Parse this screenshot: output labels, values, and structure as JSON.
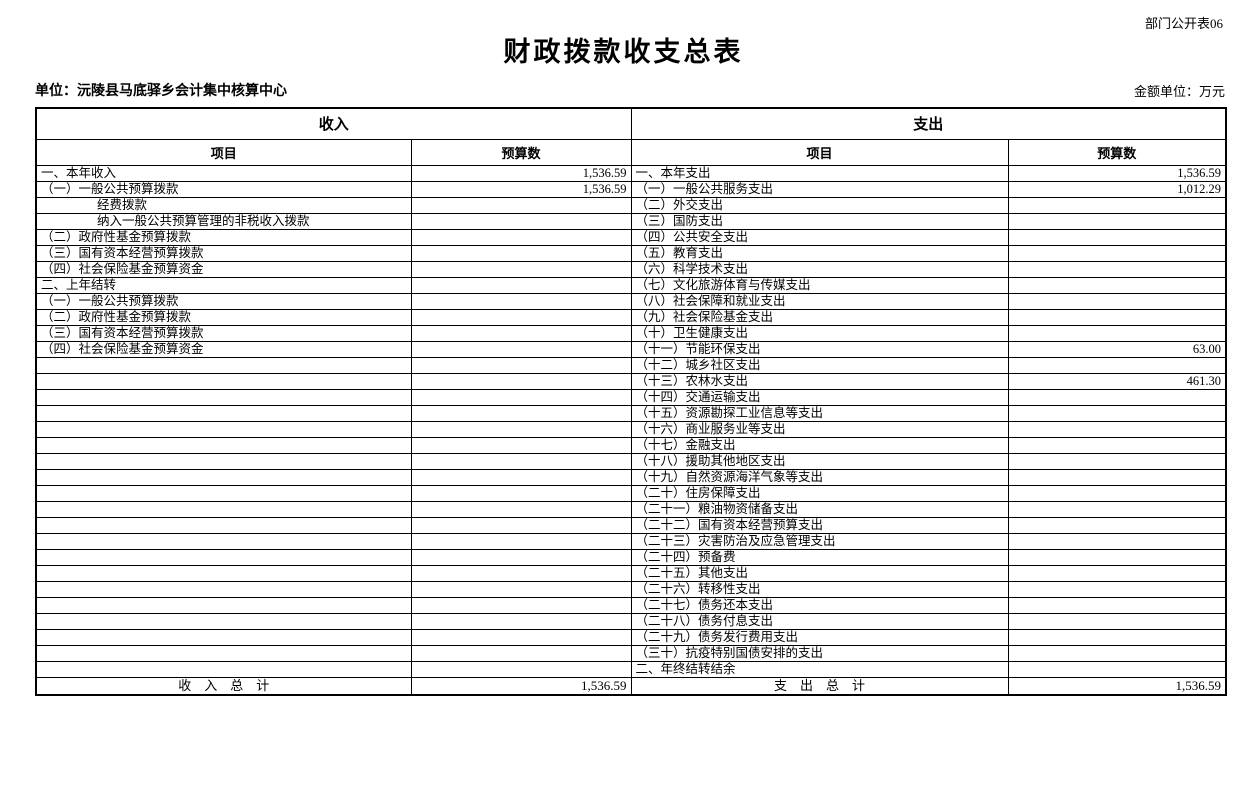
{
  "meta": {
    "doc_code": "部门公开表06",
    "title": "财政拨款收支总表",
    "unit_label": "单位：沅陵县马底驿乡会计集中核算中心",
    "amount_unit_label": "金额单位：万元"
  },
  "table": {
    "income_section_header": "收入",
    "expense_section_header": "支出",
    "item_column_header": "项目",
    "budget_column_header": "预算数",
    "income_rows": [
      {
        "item": "一、本年收入",
        "value": "1,536.59",
        "indent": 0
      },
      {
        "item": "（一）一般公共预算拨款",
        "value": "1,536.59",
        "indent": 0
      },
      {
        "item": "经费拨款",
        "value": "",
        "indent": 1
      },
      {
        "item": "纳入一般公共预算管理的非税收入拨款",
        "value": "",
        "indent": 1
      },
      {
        "item": "（二）政府性基金预算拨款",
        "value": "",
        "indent": 0
      },
      {
        "item": "（三）国有资本经营预算拨款",
        "value": "",
        "indent": 0
      },
      {
        "item": "（四）社会保险基金预算资金",
        "value": "",
        "indent": 0
      },
      {
        "item": "二、上年结转",
        "value": "",
        "indent": 0
      },
      {
        "item": "（一）一般公共预算拨款",
        "value": "",
        "indent": 0
      },
      {
        "item": "（二）政府性基金预算拨款",
        "value": "",
        "indent": 0
      },
      {
        "item": "（三）国有资本经营预算拨款",
        "value": "",
        "indent": 0
      },
      {
        "item": "（四）社会保险基金预算资金",
        "value": "",
        "indent": 0
      },
      {
        "item": "",
        "value": "",
        "indent": 0
      },
      {
        "item": "",
        "value": "",
        "indent": 0
      },
      {
        "item": "",
        "value": "",
        "indent": 0
      },
      {
        "item": "",
        "value": "",
        "indent": 0
      },
      {
        "item": "",
        "value": "",
        "indent": 0
      },
      {
        "item": "",
        "value": "",
        "indent": 0
      },
      {
        "item": "",
        "value": "",
        "indent": 0
      },
      {
        "item": "",
        "value": "",
        "indent": 0
      },
      {
        "item": "",
        "value": "",
        "indent": 0
      },
      {
        "item": "",
        "value": "",
        "indent": 0
      },
      {
        "item": "",
        "value": "",
        "indent": 0
      },
      {
        "item": "",
        "value": "",
        "indent": 0
      },
      {
        "item": "",
        "value": "",
        "indent": 0
      },
      {
        "item": "",
        "value": "",
        "indent": 0
      },
      {
        "item": "",
        "value": "",
        "indent": 0
      },
      {
        "item": "",
        "value": "",
        "indent": 0
      },
      {
        "item": "",
        "value": "",
        "indent": 0
      },
      {
        "item": "",
        "value": "",
        "indent": 0
      },
      {
        "item": "",
        "value": "",
        "indent": 0
      },
      {
        "item": "",
        "value": "",
        "indent": 0
      }
    ],
    "expense_rows": [
      {
        "item": "一、本年支出",
        "value": "1,536.59",
        "indent": 0
      },
      {
        "item": "（一）一般公共服务支出",
        "value": "1,012.29",
        "indent": 0
      },
      {
        "item": "（二）外交支出",
        "value": "",
        "indent": 0
      },
      {
        "item": "（三）国防支出",
        "value": "",
        "indent": 0
      },
      {
        "item": "（四）公共安全支出",
        "value": "",
        "indent": 0
      },
      {
        "item": "（五）教育支出",
        "value": "",
        "indent": 0
      },
      {
        "item": "（六）科学技术支出",
        "value": "",
        "indent": 0
      },
      {
        "item": "（七）文化旅游体育与传媒支出",
        "value": "",
        "indent": 0
      },
      {
        "item": "（八）社会保障和就业支出",
        "value": "",
        "indent": 0
      },
      {
        "item": "（九）社会保险基金支出",
        "value": "",
        "indent": 0
      },
      {
        "item": "（十）卫生健康支出",
        "value": "",
        "indent": 0
      },
      {
        "item": "（十一）节能环保支出",
        "value": "63.00",
        "indent": 0
      },
      {
        "item": "（十二）城乡社区支出",
        "value": "",
        "indent": 0
      },
      {
        "item": "（十三）农林水支出",
        "value": "461.30",
        "indent": 0
      },
      {
        "item": "（十四）交通运输支出",
        "value": "",
        "indent": 0
      },
      {
        "item": "（十五）资源勘探工业信息等支出",
        "value": "",
        "indent": 0
      },
      {
        "item": "（十六）商业服务业等支出",
        "value": "",
        "indent": 0
      },
      {
        "item": "（十七）金融支出",
        "value": "",
        "indent": 0
      },
      {
        "item": "（十八）援助其他地区支出",
        "value": "",
        "indent": 0
      },
      {
        "item": "（十九）自然资源海洋气象等支出",
        "value": "",
        "indent": 0
      },
      {
        "item": "（二十）住房保障支出",
        "value": "",
        "indent": 0
      },
      {
        "item": "（二十一）粮油物资储备支出",
        "value": "",
        "indent": 0
      },
      {
        "item": "（二十二）国有资本经营预算支出",
        "value": "",
        "indent": 0
      },
      {
        "item": "（二十三）灾害防治及应急管理支出",
        "value": "",
        "indent": 0
      },
      {
        "item": "（二十四）预备费",
        "value": "",
        "indent": 0
      },
      {
        "item": "（二十五）其他支出",
        "value": "",
        "indent": 0
      },
      {
        "item": "（二十六）转移性支出",
        "value": "",
        "indent": 0
      },
      {
        "item": "（二十七）债务还本支出",
        "value": "",
        "indent": 0
      },
      {
        "item": "（二十八）债务付息支出",
        "value": "",
        "indent": 0
      },
      {
        "item": "（二十九）债务发行费用支出",
        "value": "",
        "indent": 0
      },
      {
        "item": "（三十）抗疫特别国债安排的支出",
        "value": "",
        "indent": 0
      },
      {
        "item": "二、年终结转结余",
        "value": "",
        "indent": 0
      }
    ],
    "income_total": {
      "label": "收　入　总　计",
      "value": "1,536.59"
    },
    "expense_total": {
      "label": "支　出　总　计",
      "value": "1,536.59"
    }
  }
}
